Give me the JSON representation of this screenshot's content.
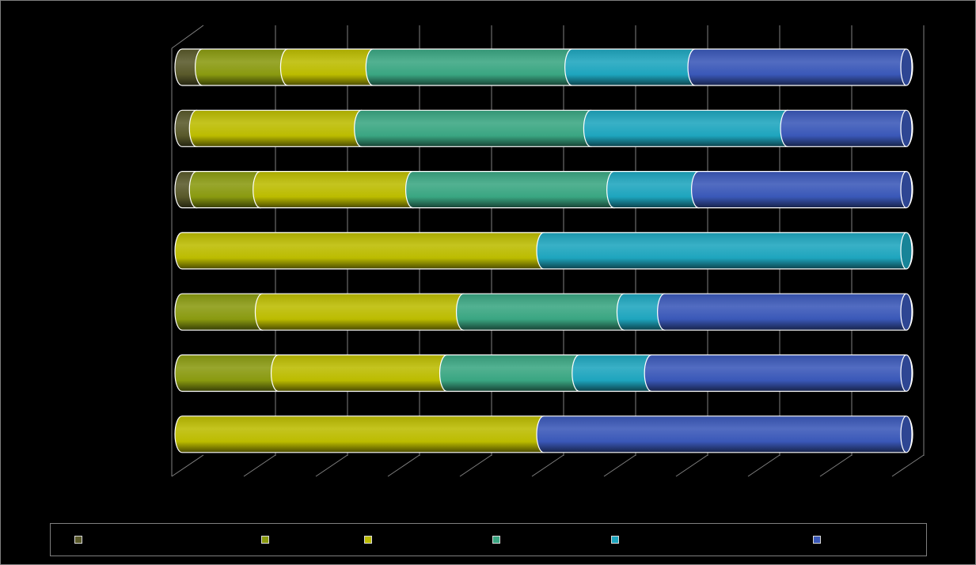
{
  "chart_data": {
    "type": "bar",
    "orientation": "horizontal",
    "stacked": "100%",
    "style": "3d-cylinder",
    "title": "",
    "xlabel": "",
    "ylabel": "",
    "xlim": [
      0,
      100
    ],
    "categories": [
      "",
      "",
      "",
      "",
      "",
      "",
      ""
    ],
    "grid": true,
    "legend_position": "bottom",
    "series": [
      {
        "color": "#59592a",
        "values": [
          2.8,
          2.0,
          2.0,
          0,
          0,
          0,
          0
        ]
      },
      {
        "color": "#8a9a10",
        "values": [
          11.8,
          0,
          8.8,
          0,
          11.1,
          13.3,
          0
        ]
      },
      {
        "color": "#bcbc00",
        "values": [
          11.8,
          22.8,
          21.1,
          50,
          27.8,
          23.3,
          50
        ]
      },
      {
        "color": "#3aa682",
        "values": [
          27.5,
          31.7,
          27.8,
          0,
          22.2,
          18.3,
          0
        ]
      },
      {
        "color": "#1ea5be",
        "values": [
          17.0,
          27.2,
          11.7,
          50,
          5.6,
          10.0,
          0
        ]
      },
      {
        "color": "#3a58b8",
        "values": [
          29.1,
          16.3,
          28.6,
          0,
          33.3,
          35.1,
          50
        ]
      }
    ]
  }
}
